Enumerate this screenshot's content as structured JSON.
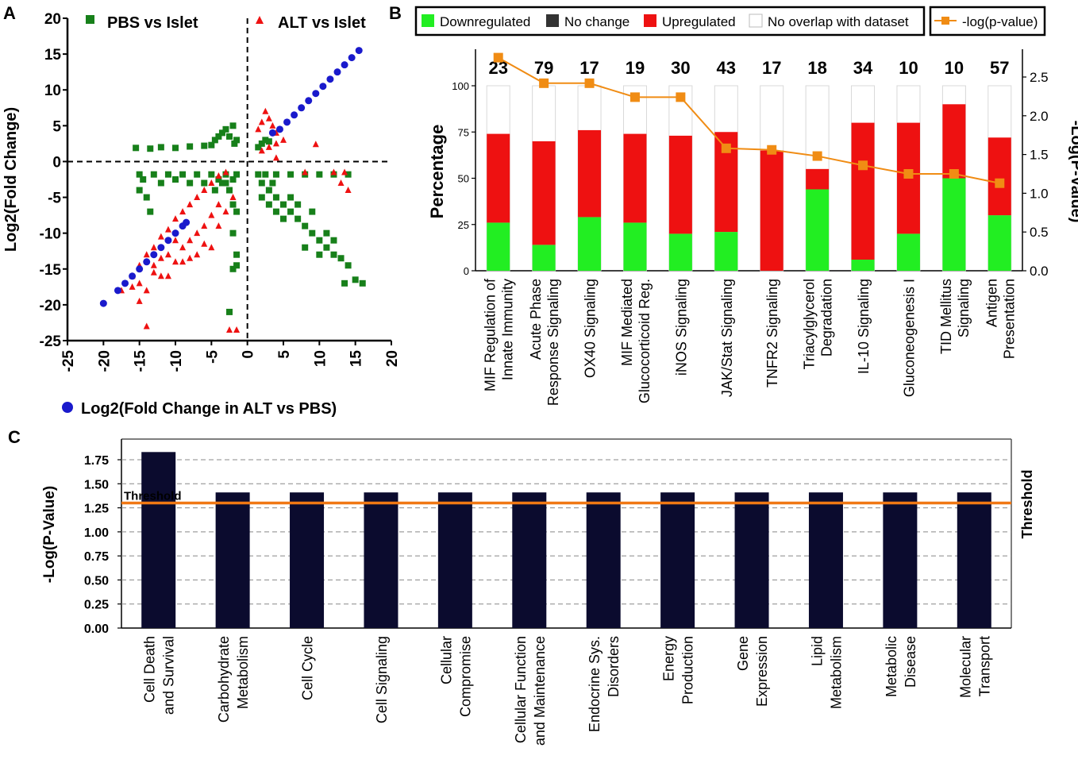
{
  "panel_labels": {
    "a": "A",
    "b": "B",
    "c": "C"
  },
  "colors": {
    "pbs": "#17801a",
    "alt": "#ee1111",
    "fc": "#1a1acc",
    "down": "#22ee22",
    "nochange": "#333333",
    "up": "#ee1111",
    "nooverlap": "#ffffff",
    "pline": "#f08c14",
    "cbar": "#0b0b2e",
    "threshold": "#f07814",
    "blue_text": "#1111cc"
  },
  "chart_data": [
    {
      "type": "scatter",
      "panel": "A",
      "xlabel": "Log2(Fold Change in ALT vs PBS)",
      "ylabel": "Log2(Fold Change)",
      "xlim": [
        -25,
        20
      ],
      "ylim": [
        -25,
        20
      ],
      "xticks": [
        "-25",
        "-20",
        "-15",
        "-10",
        "-5",
        "0",
        "5",
        "10",
        "15",
        "20"
      ],
      "yticks": [
        "-25",
        "-20",
        "-15",
        "-10",
        "-5",
        "0",
        "5",
        "10",
        "15",
        "20"
      ],
      "legend": [
        "PBS vs Islet",
        "ALT vs Islet",
        "Log2(Fold Change in ALT vs PBS)"
      ],
      "series": [
        {
          "name": "PBS vs Islet",
          "marker": "square",
          "points": [
            [
              -15.5,
              1.9
            ],
            [
              -13.5,
              1.8
            ],
            [
              -12,
              2
            ],
            [
              -10,
              1.9
            ],
            [
              -8,
              2.1
            ],
            [
              -6,
              2.2
            ],
            [
              -5,
              2.3
            ],
            [
              -4.5,
              3
            ],
            [
              -4,
              3.5
            ],
            [
              -3.5,
              4
            ],
            [
              -3,
              4.5
            ],
            [
              -2.5,
              3.5
            ],
            [
              -2,
              5
            ],
            [
              -1.8,
              2.5
            ],
            [
              -1.5,
              3
            ],
            [
              -1.5,
              -1.8
            ],
            [
              -3,
              -1.8
            ],
            [
              -5,
              -1.8
            ],
            [
              -7,
              -1.8
            ],
            [
              -9,
              -1.8
            ],
            [
              -11,
              -1.8
            ],
            [
              -13,
              -1.8
            ],
            [
              -15,
              -1.8
            ],
            [
              -14.5,
              -2.5
            ],
            [
              -15,
              -4
            ],
            [
              -14,
              -5
            ],
            [
              -13.5,
              -7
            ],
            [
              -12,
              -3
            ],
            [
              -10,
              -2.5
            ],
            [
              -8,
              -3
            ],
            [
              -6,
              -3
            ],
            [
              -4,
              -2.5
            ],
            [
              -3,
              -3
            ],
            [
              -2,
              -2.5
            ],
            [
              -2.5,
              -4
            ],
            [
              -2,
              -6
            ],
            [
              -1.5,
              -7
            ],
            [
              -2,
              -10
            ],
            [
              -1.5,
              -13
            ],
            [
              -2,
              -15
            ],
            [
              -1.5,
              -14.5
            ],
            [
              -2.5,
              -21
            ],
            [
              -3.5,
              -3
            ],
            [
              -4.5,
              -4
            ],
            [
              1.5,
              2
            ],
            [
              2,
              2.5
            ],
            [
              2.5,
              3
            ],
            [
              3,
              2.8
            ],
            [
              1.5,
              -1.8
            ],
            [
              2.5,
              -1.8
            ],
            [
              4,
              -1.8
            ],
            [
              6,
              -1.8
            ],
            [
              8,
              -1.8
            ],
            [
              10,
              -1.8
            ],
            [
              12,
              -1.8
            ],
            [
              14,
              -1.8
            ],
            [
              2,
              -3
            ],
            [
              3,
              -4
            ],
            [
              4,
              -5
            ],
            [
              5,
              -6
            ],
            [
              6,
              -7
            ],
            [
              7,
              -8
            ],
            [
              8,
              -9
            ],
            [
              9,
              -10
            ],
            [
              10,
              -11
            ],
            [
              11,
              -12
            ],
            [
              12,
              -13
            ],
            [
              13,
              -13.5
            ],
            [
              14,
              -14.5
            ],
            [
              15,
              -16.5
            ],
            [
              13.5,
              -17
            ],
            [
              16,
              -17
            ],
            [
              11,
              -10
            ],
            [
              8,
              -12
            ],
            [
              10,
              -13
            ],
            [
              12,
              -11
            ],
            [
              2,
              -5
            ],
            [
              3,
              -6
            ],
            [
              4,
              -7
            ],
            [
              5,
              -8
            ],
            [
              3.5,
              -3
            ],
            [
              6,
              -5
            ],
            [
              7,
              -6
            ],
            [
              9,
              -7
            ]
          ]
        },
        {
          "name": "ALT vs Islet",
          "marker": "triangle",
          "points": [
            [
              1.5,
              4.5
            ],
            [
              2,
              5.5
            ],
            [
              2.5,
              7
            ],
            [
              3,
              6
            ],
            [
              3.5,
              5
            ],
            [
              4,
              4
            ],
            [
              2,
              1.5
            ],
            [
              3,
              2
            ],
            [
              4,
              2.5
            ],
            [
              5,
              3
            ],
            [
              9.5,
              2.4
            ],
            [
              4,
              0.5
            ],
            [
              -17.5,
              -18
            ],
            [
              -16,
              -16
            ],
            [
              -15,
              -14.5
            ],
            [
              -14,
              -13
            ],
            [
              -13,
              -12
            ],
            [
              -12,
              -10.5
            ],
            [
              -11,
              -9.5
            ],
            [
              -10,
              -8
            ],
            [
              -9,
              -7
            ],
            [
              -8,
              -6
            ],
            [
              -7,
              -5
            ],
            [
              -6,
              -4
            ],
            [
              -5,
              -3
            ],
            [
              -4,
              -2
            ],
            [
              -3,
              -1.5
            ],
            [
              -15,
              -17
            ],
            [
              -14,
              -18
            ],
            [
              -12,
              -16
            ],
            [
              -10,
              -14
            ],
            [
              -9,
              -12
            ],
            [
              -8,
              -11
            ],
            [
              -7,
              -10
            ],
            [
              -6,
              -9
            ],
            [
              -5,
              -7.5
            ],
            [
              -4,
              -6
            ],
            [
              -13,
              -14.5
            ],
            [
              -11,
              -13
            ],
            [
              -15,
              -19.5
            ],
            [
              -14,
              -23
            ],
            [
              -7,
              -13
            ],
            [
              -6,
              -11.5
            ],
            [
              -5,
              -12
            ],
            [
              -4,
              -9
            ],
            [
              -3,
              -7
            ],
            [
              -2,
              -5
            ],
            [
              -2.5,
              -23.5
            ],
            [
              -1.5,
              -23.5
            ],
            [
              -9,
              -14
            ],
            [
              -8,
              -13.5
            ],
            [
              -10,
              -11
            ],
            [
              -12,
              -13.5
            ],
            [
              -13,
              -15.5
            ],
            [
              -16,
              -17.5
            ],
            [
              -11,
              -16
            ],
            [
              12,
              -1.5
            ],
            [
              13,
              -3
            ],
            [
              14,
              -4
            ],
            [
              13.5,
              -1.5
            ],
            [
              8,
              -1.5
            ]
          ]
        },
        {
          "name": "Log2(Fold Change in ALT vs PBS)",
          "marker": "circle",
          "points": [
            [
              -20,
              -19.8
            ],
            [
              -18,
              -18
            ],
            [
              -17,
              -17
            ],
            [
              -16,
              -16
            ],
            [
              -15,
              -15
            ],
            [
              -14,
              -14
            ],
            [
              -13,
              -13
            ],
            [
              -12,
              -12
            ],
            [
              -11,
              -11
            ],
            [
              -10,
              -10
            ],
            [
              -9,
              -9
            ],
            [
              -8.5,
              -8.5
            ],
            [
              3.5,
              4
            ],
            [
              4.5,
              4.5
            ],
            [
              5.5,
              5.5
            ],
            [
              6.5,
              6.5
            ],
            [
              7.5,
              7.5
            ],
            [
              8.5,
              8.5
            ],
            [
              9.5,
              9.5
            ],
            [
              10.5,
              10.5
            ],
            [
              11.5,
              11.5
            ],
            [
              12.5,
              12.5
            ],
            [
              13.5,
              13.5
            ],
            [
              14.5,
              14.5
            ],
            [
              15.5,
              15.5
            ]
          ]
        }
      ]
    },
    {
      "type": "bar",
      "panel": "B",
      "stacked": true,
      "ylabel": "Percentage",
      "y2label": "-Log(P-Value)",
      "ylim": [
        0,
        100
      ],
      "y2lim": [
        0,
        2.5
      ],
      "yticks": [
        "0",
        "25",
        "50",
        "75",
        "100"
      ],
      "y2ticks": [
        "0.0",
        "0.5",
        "1.0",
        "1.5",
        "2.0",
        "2.5"
      ],
      "legend_bars": [
        "Downregulated",
        "No change",
        "Upregulated",
        "No overlap with dataset"
      ],
      "legend_line": "-log(p-value)",
      "categories": [
        {
          "lines": [
            "MIF Regulation of",
            "Innate Immunity"
          ],
          "blue": false
        },
        {
          "lines": [
            "Acute Phase",
            "Response Signaling"
          ],
          "blue": false
        },
        {
          "lines": [
            "OX40 Signaling"
          ],
          "blue": false
        },
        {
          "lines": [
            "MIF Mediated",
            "Glucocorticoid Reg."
          ],
          "blue": false
        },
        {
          "lines": [
            "iNOS Signaling"
          ],
          "blue": false
        },
        {
          "lines": [
            "JAK/Stat Signaling"
          ],
          "blue": false
        },
        {
          "lines": [
            "TNFR2 Signaling"
          ],
          "blue": false
        },
        {
          "lines": [
            "Triacylglycerol",
            "Degradation"
          ],
          "blue": false
        },
        {
          "lines": [
            "IL-10 Signaling"
          ],
          "blue": false
        },
        {
          "lines": [
            "Gluconeogenesis I"
          ],
          "blue": false
        },
        {
          "lines": [
            "TID Mellitus",
            "Signaling"
          ],
          "blue": true
        },
        {
          "lines": [
            "Antigen",
            "Presentation"
          ],
          "blue": true
        }
      ],
      "counts": [
        "23",
        "79",
        "17",
        "19",
        "30",
        "43",
        "17",
        "18",
        "34",
        "10",
        "10",
        "57"
      ],
      "series": [
        {
          "name": "Downregulated",
          "values": [
            26,
            14,
            29,
            26,
            20,
            21,
            0,
            44,
            6,
            20,
            50,
            30
          ]
        },
        {
          "name": "Upregulated",
          "values": [
            48,
            56,
            47,
            48,
            53,
            54,
            65,
            11,
            74,
            60,
            40,
            42
          ]
        }
      ],
      "neg_log_p": [
        2.75,
        2.42,
        2.42,
        2.24,
        2.24,
        1.58,
        1.56,
        1.48,
        1.36,
        1.25,
        1.25,
        1.13
      ]
    },
    {
      "type": "bar",
      "panel": "C",
      "ylabel": "-Log(P-Value)",
      "ylim": [
        0,
        1.9
      ],
      "yticks": [
        "0.00",
        "0.25",
        "0.50",
        "0.75",
        "1.00",
        "1.25",
        "1.50",
        "1.75"
      ],
      "threshold": 1.3,
      "threshold_label": "Threshold",
      "categories": [
        {
          "lines": [
            "Cell Death",
            "and Survival"
          ],
          "blue": true
        },
        {
          "lines": [
            "Carbohydrate",
            "Metabolism"
          ],
          "blue": false
        },
        {
          "lines": [
            "Cell Cycle"
          ],
          "blue": false
        },
        {
          "lines": [
            "Cell Signaling"
          ],
          "blue": false
        },
        {
          "lines": [
            "Cellular",
            "Compromise"
          ],
          "blue": false
        },
        {
          "lines": [
            "Cellular Function",
            "and Maintenance"
          ],
          "blue": false
        },
        {
          "lines": [
            "Endocrine Sys.",
            "Disorders"
          ],
          "blue": false
        },
        {
          "lines": [
            "Energy",
            "Production"
          ],
          "blue": false
        },
        {
          "lines": [
            "Gene",
            "Expression"
          ],
          "blue": false
        },
        {
          "lines": [
            "Lipid",
            "Metabolism"
          ],
          "blue": false
        },
        {
          "lines": [
            "Metabolic",
            "Disease"
          ],
          "blue": true
        },
        {
          "lines": [
            "Molecular",
            "Transport"
          ],
          "blue": false
        }
      ],
      "values": [
        1.83,
        1.41,
        1.41,
        1.41,
        1.41,
        1.41,
        1.41,
        1.41,
        1.41,
        1.41,
        1.41,
        1.41
      ]
    }
  ]
}
